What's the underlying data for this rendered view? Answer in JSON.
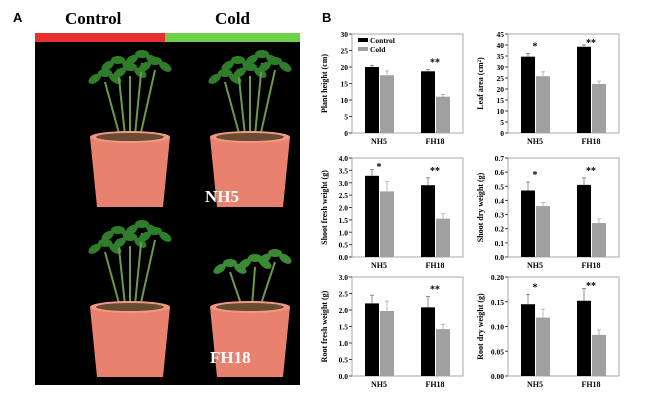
{
  "panel_a": {
    "letter": "A",
    "conditions": [
      "Control",
      "Cold"
    ],
    "condition_colors": [
      "#e8302f",
      "#6fd04a"
    ],
    "cultivars": [
      "NH5",
      "FH18"
    ]
  },
  "panel_b": {
    "letter": "B"
  },
  "chart_data": [
    {
      "type": "bar",
      "ylabel": "Plant height (cm)",
      "categories": [
        "NH5",
        "FH18"
      ],
      "ylim": [
        0,
        30
      ],
      "yticks": [
        "0",
        "5",
        "10",
        "15",
        "20",
        "25",
        "30"
      ],
      "legend": [
        "Control",
        "Cold"
      ],
      "legend_position": "top-left",
      "series": [
        {
          "name": "Control",
          "values": [
            20,
            18.7
          ],
          "errors": [
            0.5,
            0.5
          ]
        },
        {
          "name": "Cold",
          "values": [
            17.5,
            11
          ],
          "errors": [
            1.3,
            0.7
          ]
        }
      ],
      "significance": [
        "",
        "**"
      ]
    },
    {
      "type": "bar",
      "ylabel": "Leaf area (cm²)",
      "categories": [
        "NH5",
        "FH18"
      ],
      "ylim": [
        0,
        45
      ],
      "yticks": [
        "0",
        "5",
        "10",
        "15",
        "20",
        "25",
        "30",
        "35",
        "40",
        "45"
      ],
      "series": [
        {
          "name": "Control",
          "values": [
            34.7,
            39.2
          ],
          "errors": [
            1.5,
            0.8
          ]
        },
        {
          "name": "Cold",
          "values": [
            25.8,
            22.3
          ],
          "errors": [
            2,
            1.3
          ]
        }
      ],
      "significance": [
        "*",
        "**"
      ]
    },
    {
      "type": "bar",
      "ylabel": "Shoot fresh weight (g)",
      "categories": [
        "NH5",
        "FH18"
      ],
      "ylim": [
        0,
        4
      ],
      "yticks": [
        "0.0",
        "0.5",
        "1.0",
        "1.5",
        "2.0",
        "2.5",
        "3.0",
        "3.5",
        "4.0"
      ],
      "series": [
        {
          "name": "Control",
          "values": [
            3.28,
            2.9
          ],
          "errors": [
            0.25,
            0.3
          ]
        },
        {
          "name": "Cold",
          "values": [
            2.65,
            1.55
          ],
          "errors": [
            0.4,
            0.2
          ]
        }
      ],
      "significance": [
        "*",
        "**"
      ]
    },
    {
      "type": "bar",
      "ylabel": "Shoot dry weight (g)",
      "categories": [
        "NH5",
        "FH18"
      ],
      "ylim": [
        0,
        0.7
      ],
      "yticks": [
        "0.0",
        "0.1",
        "0.2",
        "0.3",
        "0.4",
        "0.5",
        "0.6",
        "0.7"
      ],
      "series": [
        {
          "name": "Control",
          "values": [
            0.47,
            0.51
          ],
          "errors": [
            0.06,
            0.05
          ]
        },
        {
          "name": "Cold",
          "values": [
            0.36,
            0.24
          ],
          "errors": [
            0.025,
            0.03
          ]
        }
      ],
      "significance": [
        "*",
        "**"
      ]
    },
    {
      "type": "bar",
      "ylabel": "Root fresh weight (g)",
      "categories": [
        "NH5",
        "FH18"
      ],
      "ylim": [
        0,
        3
      ],
      "yticks": [
        "0.0",
        "0.5",
        "1.0",
        "1.5",
        "2.0",
        "2.5",
        "3.0"
      ],
      "series": [
        {
          "name": "Control",
          "values": [
            2.2,
            2.08
          ],
          "errors": [
            0.25,
            0.33
          ]
        },
        {
          "name": "Cold",
          "values": [
            1.97,
            1.42
          ],
          "errors": [
            0.3,
            0.15
          ]
        }
      ],
      "significance": [
        "",
        "**"
      ]
    },
    {
      "type": "bar",
      "ylabel": "Root dry weight (g)",
      "categories": [
        "NH5",
        "FH18"
      ],
      "ylim": [
        0,
        0.2
      ],
      "yticks": [
        "0.00",
        "0.05",
        "0.10",
        "0.15",
        "0.20"
      ],
      "series": [
        {
          "name": "Control",
          "values": [
            0.145,
            0.152
          ],
          "errors": [
            0.02,
            0.025
          ]
        },
        {
          "name": "Cold",
          "values": [
            0.118,
            0.083
          ],
          "errors": [
            0.017,
            0.01
          ]
        }
      ],
      "significance": [
        "*",
        "**"
      ]
    }
  ],
  "colors": {
    "control": "#000000",
    "cold": "#a0a0a0"
  }
}
